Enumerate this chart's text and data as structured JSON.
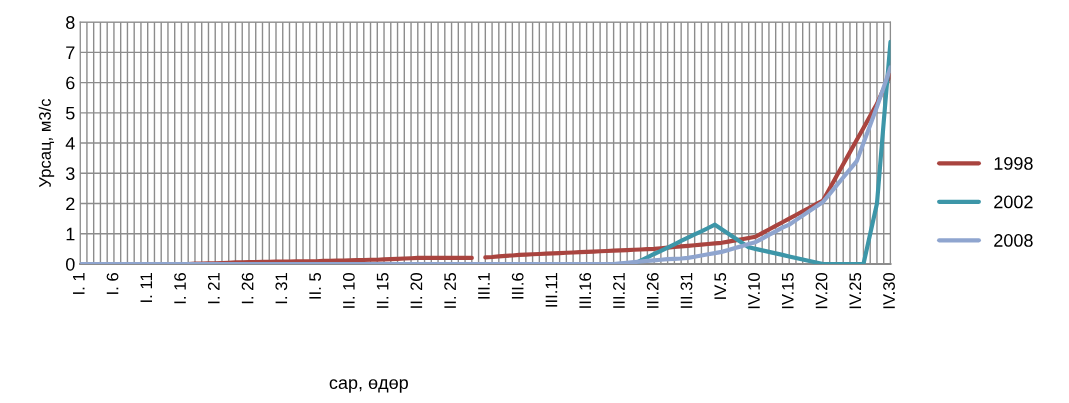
{
  "chart_data": {
    "type": "line",
    "xlabel": "сар, өдөр",
    "ylabel": "Урсац, м3/с",
    "categories": [
      "I. 1",
      null,
      null,
      null,
      null,
      "I. 6",
      null,
      null,
      null,
      null,
      "I. 11",
      null,
      null,
      null,
      null,
      "I. 16",
      null,
      null,
      null,
      null,
      "I. 21",
      null,
      null,
      null,
      null,
      "I. 26",
      null,
      null,
      null,
      null,
      "I. 31",
      null,
      null,
      null,
      null,
      "II. 5",
      null,
      null,
      null,
      null,
      "II. 10",
      null,
      null,
      null,
      null,
      "II. 15",
      null,
      null,
      null,
      null,
      "II. 20",
      null,
      null,
      null,
      null,
      "II. 25",
      null,
      null,
      null,
      null,
      "III.1",
      null,
      null,
      null,
      null,
      "III.6",
      null,
      null,
      null,
      null,
      "III.11",
      null,
      null,
      null,
      null,
      "III.16",
      null,
      null,
      null,
      null,
      "III.21",
      null,
      null,
      null,
      null,
      "III.26",
      null,
      null,
      null,
      null,
      "III.31",
      null,
      null,
      null,
      null,
      "IV.5",
      null,
      null,
      null,
      null,
      "IV.10",
      null,
      null,
      null,
      null,
      "IV.15",
      null,
      null,
      null,
      null,
      "IV.20",
      null,
      null,
      null,
      null,
      "IV.25",
      null,
      null,
      null,
      null,
      "IV.30"
    ],
    "series": [
      {
        "name": "1998",
        "color": "#a9443f",
        "values": [
          null,
          null,
          null,
          null,
          null,
          null,
          null,
          null,
          null,
          null,
          null,
          null,
          null,
          null,
          null,
          null,
          0,
          0.01,
          0.01,
          0.02,
          0.02,
          0.03,
          0.04,
          0.05,
          0.05,
          0.06,
          0.06,
          0.07,
          0.07,
          0.08,
          0.08,
          0.08,
          0.09,
          0.09,
          0.09,
          0.09,
          0.1,
          0.1,
          0.11,
          0.11,
          0.12,
          0.13,
          0.13,
          0.14,
          0.14,
          0.15,
          0.16,
          0.17,
          0.18,
          0.19,
          0.2,
          0.2,
          0.2,
          0.2,
          0.2,
          0.2,
          0.2,
          0.2,
          0.2,
          null,
          0.22,
          0.23,
          0.25,
          0.27,
          0.28,
          0.3,
          0.31,
          0.32,
          0.33,
          0.34,
          0.35,
          0.36,
          0.37,
          0.38,
          0.39,
          0.4,
          0.41,
          0.42,
          0.43,
          0.44,
          0.45,
          0.46,
          0.47,
          0.48,
          0.49,
          0.5,
          0.52,
          0.54,
          0.56,
          0.58,
          0.6,
          0.62,
          0.64,
          0.66,
          0.68,
          0.7,
          0.74,
          0.78,
          0.82,
          0.86,
          0.9,
          1.02,
          1.14,
          1.26,
          1.38,
          1.5,
          1.62,
          1.74,
          1.86,
          1.98,
          2.1,
          2.5,
          2.9,
          3.3,
          3.7,
          4.1,
          4.5,
          4.9,
          5.3,
          5.8,
          6.25
        ]
      },
      {
        "name": "2002",
        "color": "#3d96a8",
        "values": [
          null,
          null,
          null,
          null,
          null,
          null,
          null,
          null,
          null,
          null,
          null,
          null,
          null,
          null,
          null,
          null,
          null,
          null,
          null,
          null,
          null,
          null,
          null,
          null,
          null,
          null,
          null,
          null,
          null,
          null,
          null,
          null,
          null,
          null,
          null,
          null,
          null,
          null,
          null,
          null,
          null,
          null,
          null,
          null,
          null,
          null,
          null,
          null,
          null,
          null,
          null,
          null,
          null,
          null,
          null,
          null,
          null,
          null,
          null,
          null,
          null,
          null,
          null,
          null,
          null,
          null,
          null,
          null,
          null,
          null,
          null,
          null,
          null,
          null,
          null,
          null,
          null,
          null,
          null,
          null,
          null,
          0,
          0,
          0.11,
          0.22,
          0.33,
          0.43,
          0.54,
          0.65,
          0.76,
          0.87,
          0.98,
          1.08,
          1.19,
          1.3,
          1.15,
          1.0,
          0.85,
          0.7,
          0.55,
          0.5,
          0.45,
          0.4,
          0.35,
          0.3,
          0.25,
          0.2,
          0.15,
          0.1,
          0.05,
          0,
          0,
          0,
          0,
          0,
          0,
          0,
          1.0,
          2.0,
          4.7,
          7.35
        ]
      },
      {
        "name": "2008",
        "color": "#8fa5cf",
        "values": [
          0,
          0,
          0,
          0,
          0,
          0,
          0,
          0,
          0,
          0,
          0,
          0,
          0,
          0,
          0,
          0,
          0,
          0,
          0,
          0,
          0,
          0,
          0,
          0,
          0,
          0,
          0,
          0,
          0,
          0,
          0,
          0,
          0,
          0,
          0,
          0,
          0,
          0,
          0,
          0,
          0,
          0,
          0,
          0,
          0,
          0,
          0,
          0,
          0,
          0,
          0,
          0,
          0,
          0,
          0,
          0,
          0,
          0,
          0,
          0,
          0,
          0,
          0,
          0,
          0,
          0,
          0,
          0,
          0,
          0,
          0,
          0,
          0,
          0,
          0,
          0,
          0,
          0,
          0,
          0,
          0.02,
          0.04,
          0.06,
          0.08,
          0.1,
          0.12,
          0.14,
          0.16,
          0.17,
          0.18,
          0.2,
          0.24,
          0.28,
          0.32,
          0.36,
          0.4,
          0.46,
          0.53,
          0.59,
          0.66,
          0.72,
          0.84,
          0.96,
          1.08,
          1.2,
          1.3,
          1.45,
          1.6,
          1.75,
          1.9,
          2.05,
          2.32,
          2.59,
          2.86,
          3.13,
          3.4,
          4.0,
          4.6,
          5.2,
          5.85,
          6.5
        ]
      }
    ],
    "ylim": [
      0,
      8
    ],
    "yticks": [
      0,
      1,
      2,
      3,
      4,
      5,
      6,
      7,
      8
    ],
    "grid": true,
    "legend": "right",
    "marker": "none",
    "line_style": "solid"
  }
}
